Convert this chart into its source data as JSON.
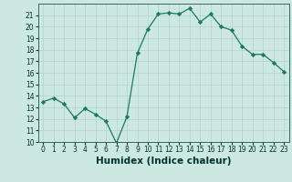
{
  "x": [
    0,
    1,
    2,
    3,
    4,
    5,
    6,
    7,
    8,
    9,
    10,
    11,
    12,
    13,
    14,
    15,
    16,
    17,
    18,
    19,
    20,
    21,
    22,
    23
  ],
  "y": [
    13.5,
    13.8,
    13.3,
    12.1,
    12.9,
    12.4,
    11.8,
    9.9,
    12.2,
    17.7,
    19.8,
    21.1,
    21.2,
    21.1,
    21.6,
    20.4,
    21.1,
    20.0,
    19.7,
    18.3,
    17.6,
    17.6,
    16.9,
    16.1
  ],
  "line_color": "#1a7a5e",
  "marker": "D",
  "marker_size": 2.2,
  "bg_color": "#cce8e0",
  "grid_color": "#b0d4cc",
  "xlabel": "Humidex (Indice chaleur)",
  "ylim": [
    10,
    22
  ],
  "xlim": [
    -0.5,
    23.5
  ],
  "yticks": [
    10,
    11,
    12,
    13,
    14,
    15,
    16,
    17,
    18,
    19,
    20,
    21
  ],
  "xticks": [
    0,
    1,
    2,
    3,
    4,
    5,
    6,
    7,
    8,
    9,
    10,
    11,
    12,
    13,
    14,
    15,
    16,
    17,
    18,
    19,
    20,
    21,
    22,
    23
  ],
  "tick_fontsize": 5.5,
  "xlabel_fontsize": 7.5,
  "spine_color": "#336666"
}
